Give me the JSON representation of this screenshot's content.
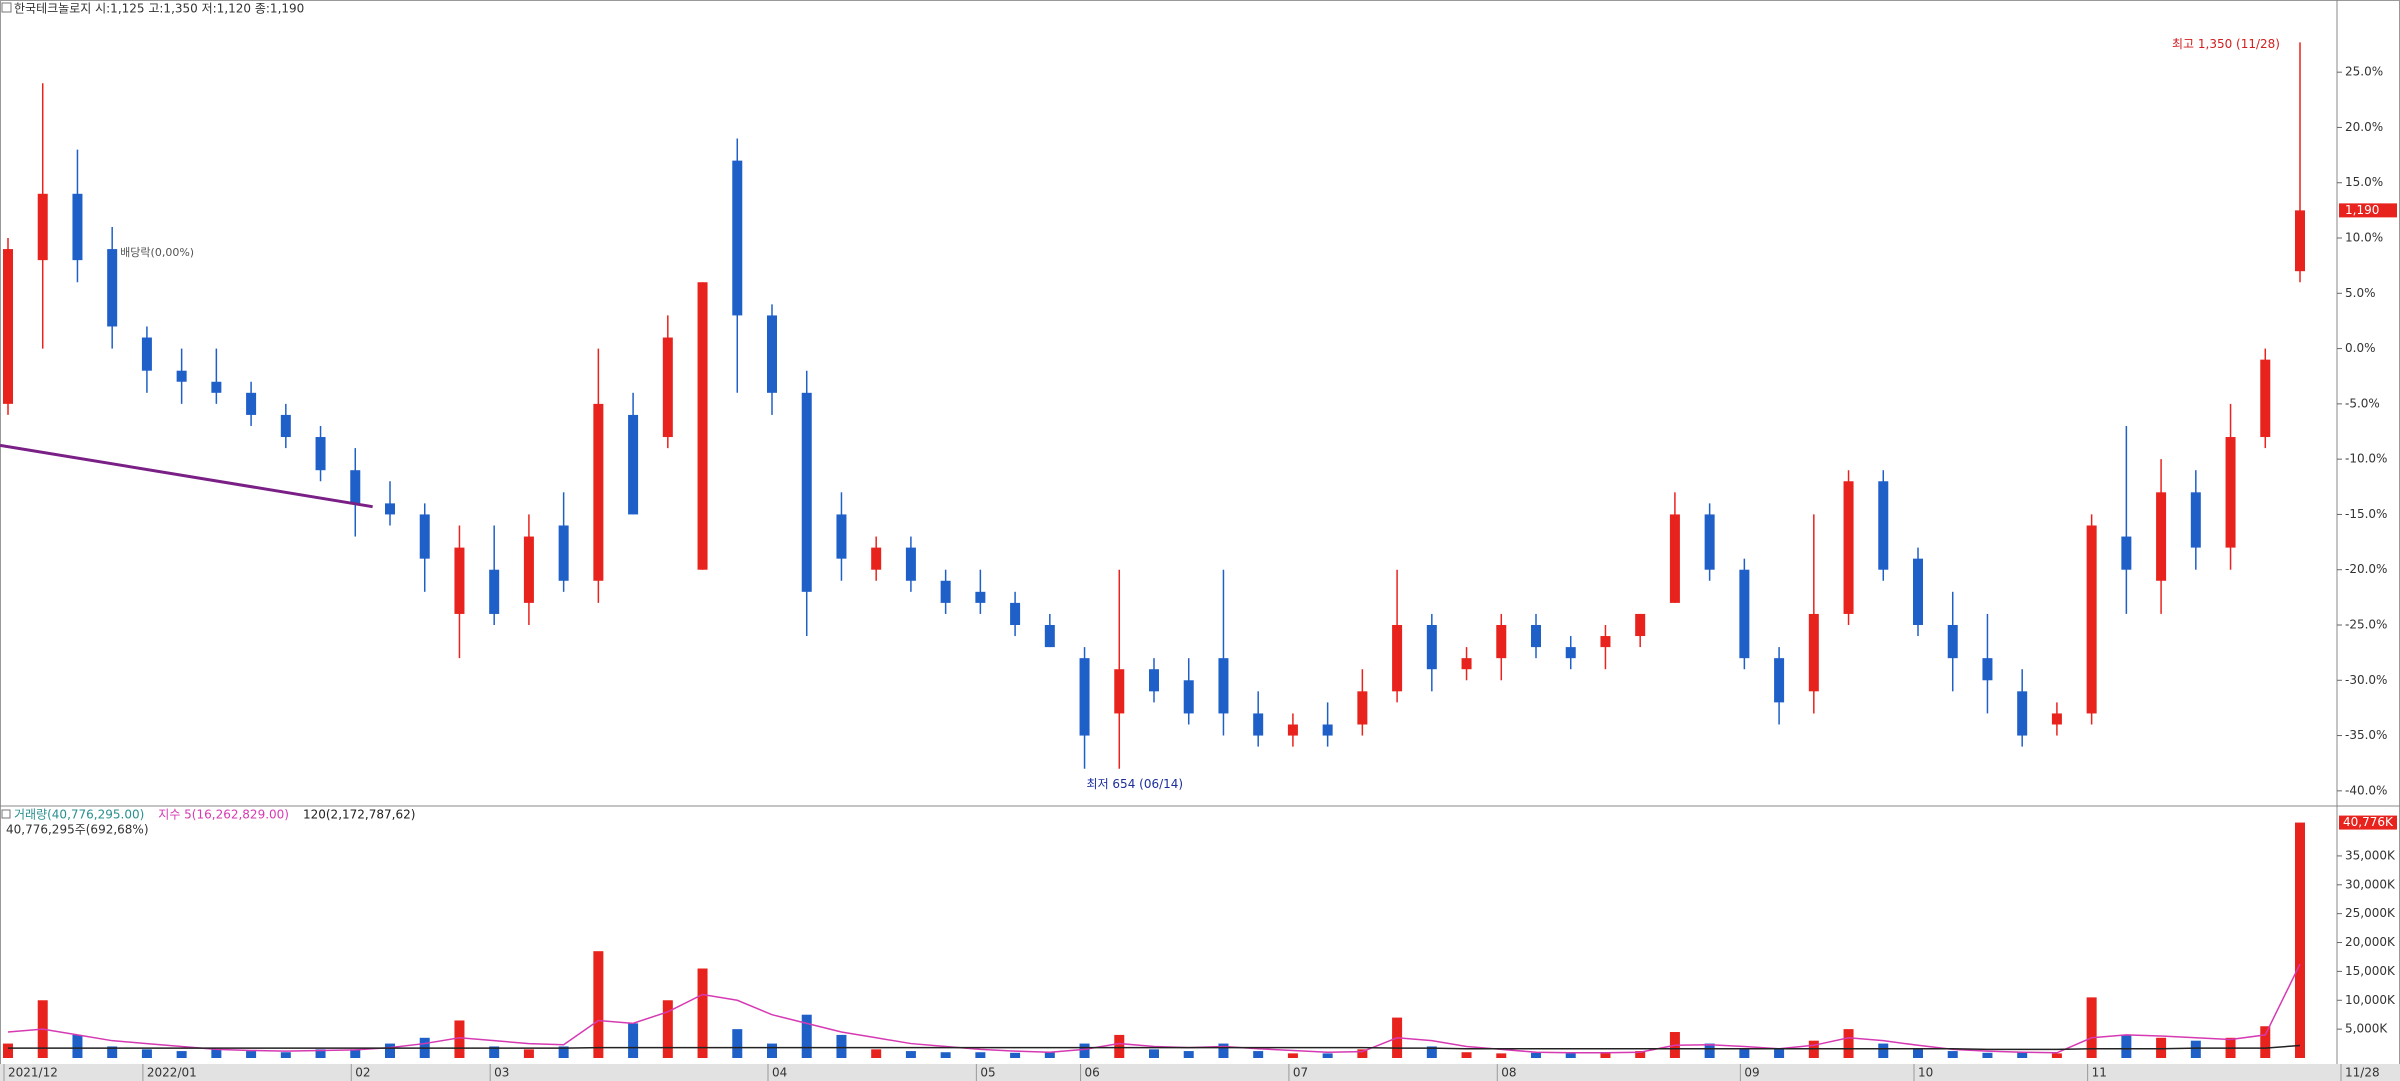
{
  "chart_data": [
    {
      "type": "candlestick",
      "title": "한국테크놀로지 시:1,125 고:1,350 저:1,120 종:1,190",
      "categories": [
        "2021/12",
        null,
        null,
        null,
        "2022/01",
        null,
        null,
        null,
        null,
        null,
        "02",
        null,
        null,
        null,
        "03",
        null,
        null,
        null,
        null,
        null,
        null,
        null,
        "04",
        null,
        null,
        null,
        null,
        null,
        "05",
        null,
        null,
        "06",
        null,
        null,
        null,
        null,
        null,
        "07",
        null,
        null,
        null,
        null,
        null,
        "08",
        null,
        null,
        null,
        null,
        null,
        null,
        "09",
        null,
        null,
        null,
        null,
        "10",
        null,
        null,
        null,
        null,
        "11",
        null,
        null,
        null,
        null,
        null,
        "11/28"
      ],
      "open": [
        -5,
        8,
        14,
        9,
        1,
        -2,
        -3,
        -4,
        -6,
        -8,
        -11,
        -14,
        -15,
        -24,
        -20,
        -23,
        -16,
        -21,
        -6,
        -8,
        -20,
        17,
        3,
        -4,
        -15,
        -20,
        -18,
        -21,
        -22,
        -23,
        -25,
        -28,
        -33,
        -29,
        -30,
        -28,
        -33,
        -35,
        -34,
        -34,
        -31,
        -25,
        -29,
        -28,
        -25,
        -27,
        -27,
        -26,
        -23,
        -15,
        -20,
        -28,
        -31,
        -24,
        -12,
        -19,
        -25,
        -28,
        -31,
        -34,
        -33,
        -17,
        -21,
        -13,
        -18,
        -8,
        7
      ],
      "high": [
        10,
        24,
        18,
        11,
        2,
        0,
        0,
        -3,
        -5,
        -7,
        -9,
        -12,
        -14,
        -16,
        -16,
        -15,
        -13,
        0,
        -4,
        3,
        6,
        19,
        4,
        -2,
        -13,
        -17,
        -17,
        -20,
        -20,
        -22,
        -24,
        -27,
        -20,
        -28,
        -28,
        -20,
        -31,
        -33,
        -32,
        -29,
        -20,
        -24,
        -27,
        -24,
        -24,
        -26,
        -25,
        -24,
        -13,
        -14,
        -19,
        -27,
        -15,
        -11,
        -11,
        -18,
        -22,
        -24,
        -29,
        -32,
        -15,
        -7,
        -10,
        -11,
        -5,
        0,
        27.7
      ],
      "low": [
        -6,
        0,
        6,
        0,
        -4,
        -5,
        -5,
        -7,
        -9,
        -12,
        -17,
        -16,
        -22,
        -28,
        -25,
        -25,
        -22,
        -23,
        -15,
        -9,
        -20,
        -4,
        -6,
        -26,
        -21,
        -21,
        -22,
        -24,
        -24,
        -26,
        -27,
        -38,
        -38,
        -32,
        -34,
        -35,
        -36,
        -36,
        -36,
        -35,
        -32,
        -31,
        -30,
        -30,
        -28,
        -29,
        -29,
        -27,
        -23,
        -21,
        -29,
        -34,
        -33,
        -25,
        -21,
        -26,
        -31,
        -33,
        -36,
        -35,
        -34,
        -24,
        -24,
        -20,
        -20,
        -9,
        6
      ],
      "close": [
        9,
        14,
        8,
        2,
        -2,
        -3,
        -4,
        -6,
        -8,
        -11,
        -14,
        -15,
        -19,
        -18,
        -24,
        -17,
        -21,
        -5,
        -15,
        1,
        6,
        3,
        -4,
        -22,
        -19,
        -18,
        -21,
        -23,
        -23,
        -25,
        -27,
        -35,
        -29,
        -31,
        -33,
        -33,
        -35,
        -34,
        -35,
        -31,
        -25,
        -29,
        -28,
        -25,
        -27,
        -28,
        -26,
        -24,
        -15,
        -20,
        -28,
        -32,
        -24,
        -12,
        -20,
        -25,
        -28,
        -30,
        -35,
        -33,
        -16,
        -20,
        -13,
        -18,
        -8,
        -1,
        12.5
      ],
      "up_color": "#e8221c",
      "down_color": "#1f5fc8",
      "ylim": [
        -41.1,
        29.9
      ],
      "yticks": [
        {
          "value": 25,
          "label": "25.0%"
        },
        {
          "value": 20,
          "label": "20.0%"
        },
        {
          "value": 15,
          "label": "15.0%"
        },
        {
          "value": 10,
          "label": "10.0%"
        },
        {
          "value": 5,
          "label": "5.0%"
        },
        {
          "value": 0,
          "label": "0.0%"
        },
        {
          "value": -5,
          "label": "-5.0%"
        },
        {
          "value": -10,
          "label": "-10.0%"
        },
        {
          "value": -15,
          "label": "-15.0%"
        },
        {
          "value": -20,
          "label": "-20.0%"
        },
        {
          "value": -25,
          "label": "-25.0%"
        },
        {
          "value": -30,
          "label": "-30.0%"
        },
        {
          "value": -35,
          "label": "-35.0%"
        },
        {
          "value": -40,
          "label": "-40.0%"
        }
      ],
      "trendline": {
        "color": "#7a1f86",
        "x": [
          0,
          10.5
        ],
        "values": [
          -8.75,
          -14.3
        ]
      },
      "high_label": "최고 1,350 (11/28)",
      "low_label": "최저 654 (06/14)",
      "ex_dividend_label": "배당락(0,00%)",
      "last_price_label": "1,190"
    },
    {
      "type": "bar",
      "subtitle": "40,776,295주(692,68%)",
      "series": [
        {
          "name": "거래량(40,776,295.00)",
          "color": "#2a8f8f",
          "values": [
            2500,
            10000,
            4000,
            2000,
            1500,
            1200,
            1500,
            1200,
            1000,
            1500,
            1500,
            2500,
            3500,
            6500,
            2000,
            1500,
            2000,
            18500,
            6000,
            10000,
            15500,
            5000,
            2500,
            7500,
            4000,
            1500,
            1200,
            1000,
            1000,
            900,
            1000,
            2500,
            4000,
            1500,
            1200,
            2500,
            1200,
            800,
            800,
            1500,
            7000,
            2000,
            1000,
            800,
            900,
            800,
            900,
            1200,
            4500,
            2500,
            1500,
            1500,
            3000,
            5000,
            2500,
            1500,
            1200,
            900,
            1000,
            800,
            10500,
            4000,
            3500,
            3000,
            3500,
            5500,
            40776
          ]
        },
        {
          "name": "지수 5(16,262,829.00)",
          "color": "#d63ab3",
          "values": [
            4500,
            5000,
            4000,
            3000,
            2500,
            2000,
            1500,
            1300,
            1200,
            1300,
            1400,
            1800,
            2500,
            3500,
            3000,
            2500,
            2300,
            6500,
            6000,
            8000,
            11000,
            10000,
            7500,
            6000,
            4500,
            3500,
            2500,
            2000,
            1500,
            1200,
            1000,
            1500,
            2500,
            2000,
            1800,
            2000,
            1600,
            1300,
            1000,
            1100,
            3500,
            3000,
            2000,
            1500,
            1000,
            900,
            900,
            1000,
            2200,
            2300,
            2000,
            1600,
            2200,
            3500,
            3000,
            2200,
            1500,
            1200,
            1000,
            900,
            3500,
            4000,
            3800,
            3500,
            3200,
            4000,
            16263
          ]
        },
        {
          "name": "120(2,172,787,62)",
          "color": "#222222",
          "values": [
            1700,
            1700,
            1700,
            1700,
            1700,
            1700,
            1700,
            1700,
            1700,
            1700,
            1700,
            1700,
            1700,
            1700,
            1700,
            1700,
            1700,
            1800,
            1800,
            1800,
            1800,
            1800,
            1800,
            1800,
            1800,
            1800,
            1800,
            1800,
            1800,
            1800,
            1800,
            1800,
            1800,
            1800,
            1800,
            1800,
            1800,
            1800,
            1800,
            1800,
            1700,
            1700,
            1600,
            1600,
            1600,
            1600,
            1600,
            1600,
            1600,
            1600,
            1600,
            1600,
            1600,
            1600,
            1600,
            1600,
            1600,
            1500,
            1500,
            1500,
            1600,
            1600,
            1600,
            1700,
            1700,
            1700,
            2173
          ]
        }
      ],
      "ylim": [
        0,
        43300
      ],
      "yticks": [
        {
          "value": 5000,
          "label": "5,000K"
        },
        {
          "value": 10000,
          "label": "10,000K"
        },
        {
          "value": 15000,
          "label": "15,000K"
        },
        {
          "value": 20000,
          "label": "20,000K"
        },
        {
          "value": 25000,
          "label": "25,000K"
        },
        {
          "value": 30000,
          "label": "30,000K"
        },
        {
          "value": 35000,
          "label": "35,000K"
        }
      ],
      "last_value_label": "40,776K"
    }
  ]
}
